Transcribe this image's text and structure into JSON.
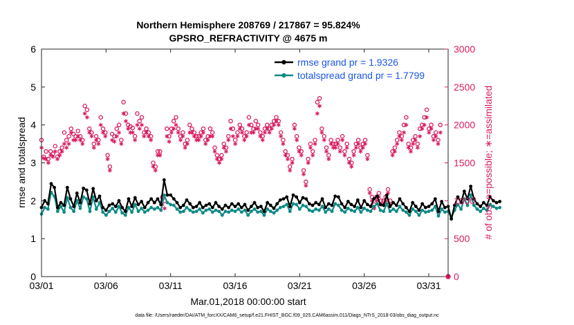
{
  "chart_data": {
    "type": "line",
    "title": "Northern Hemisphere 208769 / 217867 = 95.824%",
    "subtitle": "GPSRO_REFRACTIVITY @ 4675 m",
    "xlabel": "Mar.01,2018 00:00:00 start",
    "ylabel": "rmse and totalspread",
    "y2label": "# of obs: o=possible; ∗=assimilated",
    "footer": "data file: /Users/raeder/DAI/ATM_forcXX/CAM6_setup/f.e21.FHIST_BGC.f09_025.CAM6assim.011/Diags_NTrS_2018-03/obs_diag_output.nc",
    "xlim": [
      1,
      32.5
    ],
    "ylim": [
      0,
      6
    ],
    "y2lim": [
      0,
      3000
    ],
    "x_ticks": [
      1,
      6,
      11,
      16,
      21,
      26,
      31
    ],
    "x_tick_labels": [
      "03/01",
      "03/06",
      "03/11",
      "03/16",
      "03/21",
      "03/26",
      "03/31"
    ],
    "y_ticks": [
      "0",
      "1",
      "2",
      "3",
      "4",
      "5",
      "6"
    ],
    "y2_ticks": [
      "0",
      "500",
      "1000",
      "1500",
      "2000",
      "2500",
      "3000"
    ],
    "legend": [
      "rmse grand pr = 1.9326",
      "totalspread grand pr = 1.7799"
    ],
    "legend_position": "top-right",
    "colors": {
      "rmse": "#000000",
      "spread": "#0f8a86",
      "obs": "#d81b60",
      "legend_text": "#1a56e8"
    },
    "x_start": 1,
    "x_step": 0.25,
    "series": [
      {
        "name": "rmse",
        "values": [
          1.82,
          2.0,
          1.92,
          2.45,
          2.35,
          1.82,
          1.95,
          1.88,
          2.35,
          2.05,
          1.85,
          2.2,
          1.95,
          2.33,
          2.28,
          1.92,
          2.32,
          2.0,
          2.12,
          1.82,
          1.75,
          1.88,
          1.92,
          1.85,
          2.0,
          1.82,
          1.72,
          2.05,
          1.85,
          2.08,
          1.9,
          1.98,
          1.82,
          1.95,
          2.05,
          1.95,
          2.05,
          1.9,
          2.55,
          2.15,
          2.15,
          2.05,
          1.95,
          1.82,
          1.88,
          2.02,
          1.92,
          1.82,
          1.85,
          1.95,
          1.82,
          1.88,
          1.92,
          1.82,
          1.95,
          1.85,
          1.78,
          1.88,
          1.82,
          1.92,
          1.85,
          1.92,
          1.82,
          1.9,
          1.75,
          1.85,
          1.95,
          1.82,
          1.85,
          1.72,
          1.95,
          1.88,
          1.8,
          1.92,
          2.02,
          2.05,
          2.1,
          1.85,
          2.15,
          2.1,
          1.95,
          2.08,
          2.05,
          1.92,
          1.88,
          1.95,
          1.9,
          2.05,
          1.82,
          1.92,
          1.88,
          2.12,
          2.1,
          1.92,
          1.82,
          1.98,
          1.9,
          1.85,
          2.02,
          1.82,
          2.0,
          1.9,
          1.85,
          2.05,
          2.12,
          1.9,
          1.88,
          2.15,
          1.85,
          1.95,
          1.88,
          2.05,
          1.92,
          1.82,
          1.72,
          1.95,
          1.85,
          1.75,
          1.92,
          1.82,
          1.85,
          1.92,
          2.05,
          1.72,
          1.98,
          1.82,
          1.85,
          1.52,
          1.88,
          2.1,
          1.95,
          2.25,
          2.05,
          2.38,
          2.05,
          1.92,
          1.85,
          1.95,
          1.88,
          2.1,
          2.0,
          1.95,
          1.98
        ]
      },
      {
        "name": "totalspread",
        "values": [
          1.65,
          1.82,
          1.78,
          2.22,
          2.12,
          1.72,
          1.85,
          1.7,
          2.08,
          1.82,
          1.72,
          2.0,
          1.8,
          2.1,
          2.05,
          1.72,
          2.1,
          1.78,
          1.95,
          1.7,
          1.62,
          1.72,
          1.8,
          1.7,
          1.85,
          1.68,
          1.62,
          1.82,
          1.7,
          1.9,
          1.72,
          1.8,
          1.7,
          1.75,
          1.82,
          1.78,
          1.82,
          1.75,
          2.15,
          1.95,
          1.9,
          1.88,
          1.78,
          1.7,
          1.72,
          1.82,
          1.75,
          1.7,
          1.72,
          1.78,
          1.68,
          1.75,
          1.78,
          1.7,
          1.75,
          1.72,
          1.62,
          1.72,
          1.7,
          1.75,
          1.72,
          1.78,
          1.7,
          1.75,
          1.62,
          1.72,
          1.78,
          1.7,
          1.72,
          1.62,
          1.78,
          1.72,
          1.68,
          1.75,
          1.82,
          1.85,
          1.9,
          1.72,
          1.92,
          1.9,
          1.78,
          1.88,
          1.85,
          1.75,
          1.72,
          1.78,
          1.75,
          1.85,
          1.7,
          1.78,
          1.72,
          1.92,
          1.88,
          1.75,
          1.7,
          1.8,
          1.75,
          1.72,
          1.82,
          1.7,
          1.8,
          1.75,
          1.72,
          1.85,
          1.92,
          1.75,
          1.72,
          1.92,
          1.72,
          1.78,
          1.72,
          1.85,
          1.75,
          1.7,
          1.62,
          1.78,
          1.72,
          1.62,
          1.75,
          1.7,
          1.72,
          1.75,
          1.85,
          1.6,
          1.78,
          1.7,
          1.72,
          1.55,
          1.75,
          1.9,
          1.78,
          2.05,
          1.88,
          2.15,
          1.88,
          1.78,
          1.72,
          1.8,
          1.75,
          1.9,
          1.85,
          1.8,
          1.82
        ]
      },
      {
        "name": "obs_possible",
        "values": [
          1800,
          1580,
          1650,
          1550,
          1650,
          1620,
          1720,
          1580,
          1650,
          1700,
          1900,
          1800,
          1850,
          1950,
          1880,
          1850,
          1920,
          1850,
          1800,
          2250,
          2200,
          1950,
          1900,
          1750,
          1850,
          1800,
          2100,
          1950,
          1900,
          1600,
          1450,
          1880,
          1850,
          1950,
          2000,
          1800,
          2300,
          2150,
          2000,
          1980,
          1960,
          1850,
          2150,
          2050,
          2100,
          1900,
          1950,
          1900,
          1850,
          1500,
          1450,
          1650,
          1650,
          1050,
          1000,
          1950,
          1850,
          1950,
          2050,
          2100,
          1950,
          1850,
          1900,
          1750,
          1800,
          2000,
          1950,
          1900,
          1850,
          1850,
          1900,
          1950,
          1800,
          1850,
          1950,
          1900,
          1700,
          1600,
          1550,
          1600,
          1750,
          1700,
          1850,
          2050,
          1950,
          1800,
          1900,
          2000,
          1950,
          1850,
          1900,
          2100,
          2000,
          1950,
          2050,
          2000,
          1900,
          1850,
          1950,
          2000,
          1950,
          2000,
          2050,
          2100,
          2050,
          1900,
          1800,
          1650,
          1600,
          1450,
          1550,
          2000,
          1850,
          1700,
          1650,
          1400,
          1250,
          1550,
          1750,
          1650,
          1800,
          2300,
          2350,
          1950,
          1850,
          1700,
          1600,
          1800,
          1750,
          1750,
          1800,
          1700,
          1850,
          1650,
          1750,
          1550,
          1500,
          1650,
          1750,
          1800,
          1700,
          1750,
          1800,
          1600,
          1150,
          1050,
          950,
          1050,
          1100,
          1000,
          1000,
          1050,
          1150,
          1000,
          1650,
          1700,
          1800,
          1900,
          1850,
          2000,
          2100,
          1750,
          1700,
          1800,
          1850,
          1750,
          1950,
          2000,
          2100,
          2200,
          1950,
          2000,
          1850,
          1900,
          1800,
          2000
        ]
      },
      {
        "name": "obs_assimilated",
        "values": [
          1700,
          1560,
          1550,
          1500,
          1600,
          1580,
          1650,
          1550,
          1600,
          1650,
          1750,
          1700,
          1750,
          1900,
          1800,
          1800,
          1850,
          1800,
          1750,
          2150,
          2100,
          1900,
          1850,
          1700,
          1800,
          1750,
          2000,
          1900,
          1850,
          1550,
          1400,
          1800,
          1780,
          1850,
          1900,
          1750,
          2150,
          2050,
          1950,
          1900,
          1900,
          1800,
          2000,
          1950,
          2000,
          1850,
          1900,
          1850,
          1800,
          1450,
          1400,
          1600,
          1600,
          950,
          900,
          1850,
          1780,
          1900,
          1950,
          2000,
          1900,
          1800,
          1850,
          1700,
          1750,
          1900,
          1900,
          1850,
          1800,
          1800,
          1850,
          1900,
          1750,
          1800,
          1850,
          1850,
          1650,
          1550,
          1500,
          1550,
          1700,
          1650,
          1800,
          1950,
          1850,
          1750,
          1850,
          1950,
          1900,
          1800,
          1850,
          2000,
          1900,
          1900,
          1950,
          1950,
          1850,
          1800,
          1900,
          1950,
          1900,
          1950,
          2000,
          2050,
          2000,
          1850,
          1750,
          1600,
          1550,
          1400,
          1500,
          1950,
          1800,
          1650,
          1600,
          1350,
          1200,
          1500,
          1700,
          1600,
          1750,
          2150,
          2250,
          1900,
          1800,
          1650,
          1550,
          1750,
          1700,
          1700,
          1750,
          1650,
          1800,
          1600,
          1700,
          1500,
          1450,
          1600,
          1700,
          1750,
          1650,
          1700,
          1750,
          1550,
          1100,
          1000,
          900,
          1000,
          1050,
          950,
          950,
          1000,
          1100,
          950,
          1600,
          1650,
          1750,
          1850,
          1800,
          1900,
          2000,
          1700,
          1650,
          1750,
          1800,
          1700,
          1850,
          1950,
          2000,
          2100,
          1900,
          1950,
          1800,
          1850,
          1750,
          1900
        ]
      }
    ]
  }
}
